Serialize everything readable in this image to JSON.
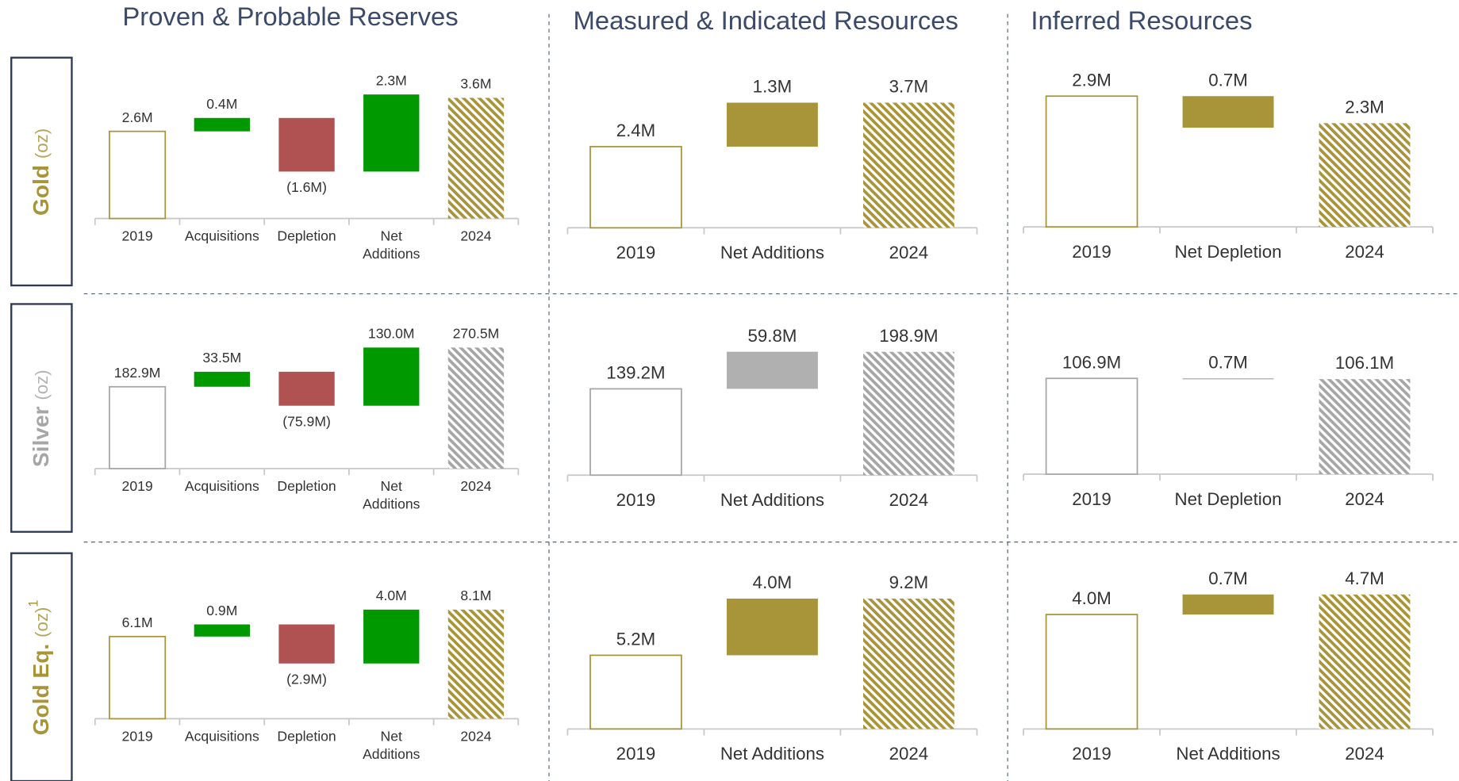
{
  "headers": {
    "columns": [
      "Proven & Probable Reserves",
      "Measured & Indicated Resources",
      "Inferred Resources"
    ],
    "rows": [
      {
        "name": "Gold",
        "unit": "(oz)",
        "color": "#a8953a"
      },
      {
        "name": "Silver",
        "unit": "(oz)",
        "color": "#a6a6a6"
      },
      {
        "name": "Gold Eq.",
        "unit": "(oz)",
        "note": "1",
        "color": "#a8953a"
      }
    ]
  },
  "chart_data": [
    {
      "type": "waterfall",
      "categories": [
        "2019",
        "Acquisitions",
        "Depletion",
        "Net Additions",
        "2024"
      ],
      "values": [
        2.6,
        0.4,
        -1.6,
        2.3,
        3.6
      ],
      "value_labels": [
        "2.6M",
        "0.4M",
        "(1.6M)",
        "2.3M",
        "3.6M"
      ],
      "colors": [
        "#a8953a",
        "#009a00",
        "#b05252",
        "#009a00",
        "#a8953a"
      ],
      "ylim": [
        0,
        4.3
      ]
    },
    {
      "type": "waterfall",
      "categories": [
        "2019",
        "Net Additions",
        "2024"
      ],
      "values": [
        2.4,
        1.3,
        3.7
      ],
      "value_labels": [
        "2.4M",
        "1.3M",
        "3.7M"
      ],
      "colors": [
        "#a8953a",
        "#a8953a",
        "#a8953a"
      ],
      "ylim": [
        0,
        4.4
      ]
    },
    {
      "type": "waterfall",
      "categories": [
        "2019",
        "Net Depletion",
        "2024"
      ],
      "values": [
        2.9,
        -0.7,
        2.3
      ],
      "value_labels": [
        "2.9M",
        "0.7M",
        "2.3M"
      ],
      "colors": [
        "#a8953a",
        "#a8953a",
        "#a8953a"
      ],
      "ylim": [
        0,
        3.3
      ]
    },
    {
      "type": "waterfall",
      "categories": [
        "2019",
        "Acquisitions",
        "Depletion",
        "Net Additions",
        "2024"
      ],
      "values": [
        182.9,
        33.5,
        -75.9,
        130.0,
        270.5
      ],
      "value_labels": [
        "182.9M",
        "33.5M",
        "(75.9M)",
        "130.0M",
        "270.5M"
      ],
      "colors": [
        "#a6a6a6",
        "#009a00",
        "#b05252",
        "#009a00",
        "#a6a6a6"
      ],
      "ylim": [
        0,
        322
      ]
    },
    {
      "type": "waterfall",
      "categories": [
        "2019",
        "Net Additions",
        "2024"
      ],
      "values": [
        139.2,
        59.8,
        198.9
      ],
      "value_labels": [
        "139.2M",
        "59.8M",
        "198.9M"
      ],
      "colors": [
        "#a6a6a6",
        "#b0b0b0",
        "#a6a6a6"
      ],
      "ylim": [
        0,
        240
      ]
    },
    {
      "type": "waterfall",
      "categories": [
        "2019",
        "Net Depletion",
        "2024"
      ],
      "values": [
        106.9,
        -0.7,
        106.1
      ],
      "value_labels": [
        "106.9M",
        "0.7M",
        "106.1M"
      ],
      "colors": [
        "#a6a6a6",
        "#a6a6a6",
        "#a6a6a6"
      ],
      "ylim": [
        0,
        166
      ]
    },
    {
      "type": "waterfall",
      "categories": [
        "2019",
        "Acquisitions",
        "Depletion",
        "Net Additions",
        "2024"
      ],
      "values": [
        6.1,
        0.9,
        -2.9,
        4.0,
        8.1
      ],
      "value_labels": [
        "6.1M",
        "0.9M",
        "(2.9M)",
        "4.0M",
        "8.1M"
      ],
      "colors": [
        "#a8953a",
        "#009a00",
        "#b05252",
        "#009a00",
        "#a8953a"
      ],
      "ylim": [
        0,
        10.7
      ]
    },
    {
      "type": "waterfall",
      "categories": [
        "2019",
        "Net Additions",
        "2024"
      ],
      "values": [
        5.2,
        4.0,
        9.2
      ],
      "value_labels": [
        "5.2M",
        "4.0M",
        "9.2M"
      ],
      "colors": [
        "#a8953a",
        "#a8953a",
        "#a8953a"
      ],
      "ylim": [
        0,
        10.5
      ]
    },
    {
      "type": "waterfall",
      "categories": [
        "2019",
        "Net Additions",
        "2024"
      ],
      "values": [
        4.0,
        0.7,
        4.7
      ],
      "value_labels": [
        "4.0M",
        "0.7M",
        "4.7M"
      ],
      "colors": [
        "#a8953a",
        "#a8953a",
        "#a8953a"
      ],
      "ylim": [
        0,
        5.2
      ]
    }
  ]
}
